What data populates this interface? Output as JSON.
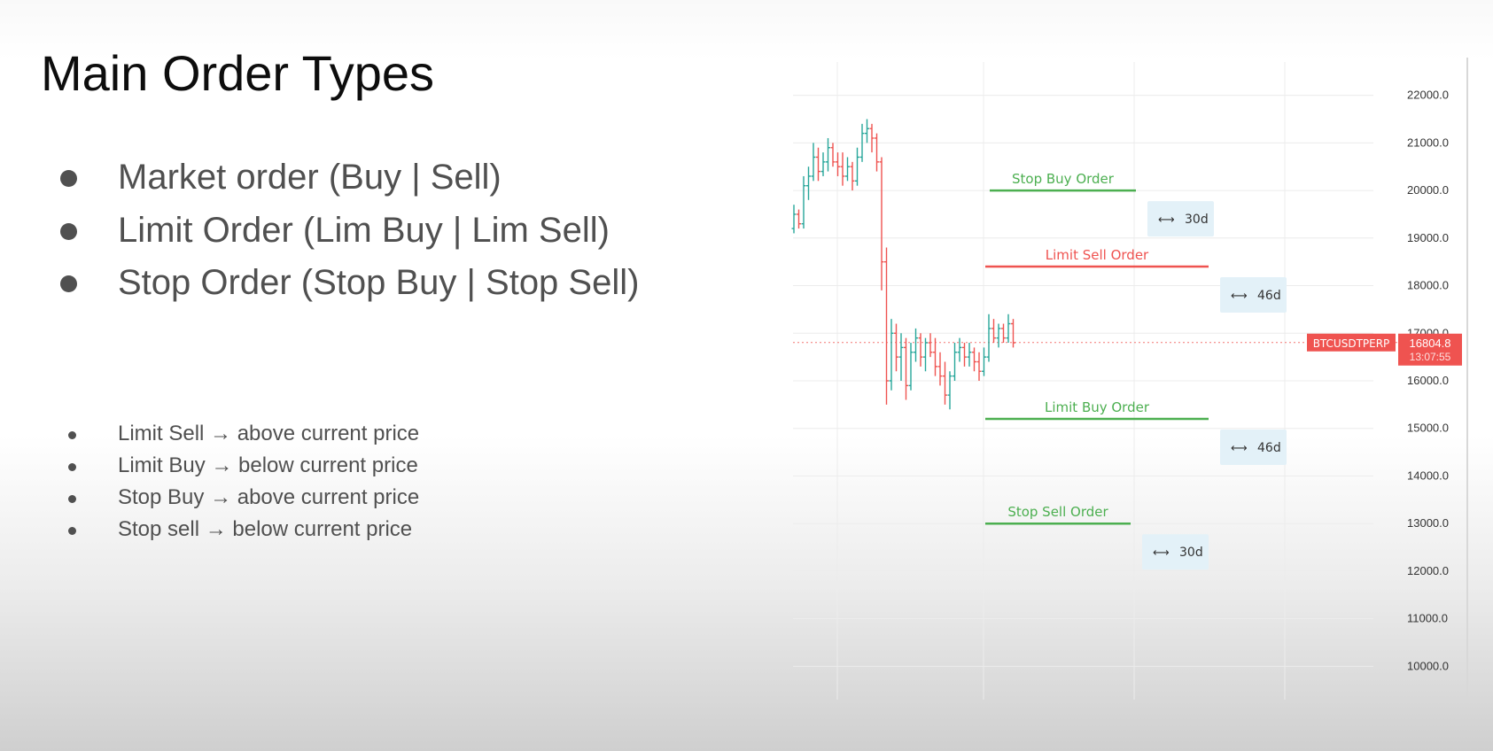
{
  "slide": {
    "title": "Main Order Types",
    "bullets": [
      "Market order (Buy | Sell)",
      "Limit Order (Lim Buy | Lim Sell)",
      "Stop Order (Stop Buy | Stop Sell)"
    ],
    "sub_bullets": [
      "Limit Sell → above current price",
      "Limit Buy → below current price",
      "Stop Buy → above current price",
      "Stop sell → below current price"
    ]
  },
  "chart_data": {
    "type": "candlestick",
    "symbol": "BTCUSDTPERP",
    "current_price": 16804.8,
    "countdown": "13:07:55",
    "yticks": [
      "22000.0",
      "21000.0",
      "20000.0",
      "19000.0",
      "18000.0",
      "17000.0",
      "16000.0",
      "15000.0",
      "14000.0",
      "13000.0",
      "12000.0",
      "11000.0",
      "10000.0"
    ],
    "ylim": [
      9300,
      22700
    ],
    "grid": true,
    "colors": {
      "up": "#26a69a",
      "down": "#ef5350",
      "buy_line": "#4caf50",
      "sell_line": "#ef5350",
      "label_bg": "#e3f1f8"
    },
    "order_lines": [
      {
        "label": "Stop Buy Order",
        "price": 20000,
        "kind": "buy",
        "duration": "30d"
      },
      {
        "label": "Limit Sell Order",
        "price": 18400,
        "kind": "sell",
        "duration": "46d"
      },
      {
        "label": "Limit Buy Order",
        "price": 15200,
        "kind": "buy",
        "duration": "46d"
      },
      {
        "label": "Stop Sell Order",
        "price": 13000,
        "kind": "buy",
        "duration": "30d"
      }
    ],
    "candles": [
      [
        19200,
        19700,
        19100,
        19500
      ],
      [
        19500,
        19600,
        19200,
        19300
      ],
      [
        19300,
        20300,
        19200,
        20100
      ],
      [
        20100,
        20500,
        19800,
        20300
      ],
      [
        20300,
        21000,
        20200,
        20700
      ],
      [
        20700,
        20900,
        20200,
        20400
      ],
      [
        20400,
        20800,
        20300,
        20600
      ],
      [
        20600,
        21100,
        20400,
        20900
      ],
      [
        20900,
        21000,
        20500,
        20600
      ],
      [
        20600,
        20800,
        20300,
        20500
      ],
      [
        20500,
        20800,
        20100,
        20300
      ],
      [
        20300,
        20700,
        20200,
        20500
      ],
      [
        20500,
        20600,
        20000,
        20200
      ],
      [
        20200,
        20900,
        20100,
        20700
      ],
      [
        20700,
        21400,
        20600,
        21200
      ],
      [
        21200,
        21500,
        21000,
        21300
      ],
      [
        21300,
        21400,
        20800,
        21100
      ],
      [
        21100,
        21200,
        20400,
        20600
      ],
      [
        20600,
        20700,
        17900,
        18500
      ],
      [
        18500,
        18800,
        15500,
        16000
      ],
      [
        16000,
        17300,
        15800,
        17000
      ],
      [
        17000,
        17200,
        16200,
        16500
      ],
      [
        16500,
        17000,
        16000,
        16700
      ],
      [
        16700,
        16900,
        15600,
        15900
      ],
      [
        15900,
        16800,
        15800,
        16600
      ],
      [
        16600,
        17100,
        16400,
        16900
      ],
      [
        16900,
        17000,
        16300,
        16500
      ],
      [
        16500,
        16900,
        16200,
        16800
      ],
      [
        16800,
        17000,
        16500,
        16600
      ],
      [
        16600,
        16900,
        16100,
        16300
      ],
      [
        16300,
        16600,
        15900,
        16100
      ],
      [
        16100,
        16400,
        15500,
        15700
      ],
      [
        15700,
        16200,
        15400,
        16100
      ],
      [
        16100,
        16800,
        16000,
        16600
      ],
      [
        16600,
        16900,
        16400,
        16700
      ],
      [
        16700,
        16800,
        16300,
        16500
      ],
      [
        16500,
        16800,
        16300,
        16600
      ],
      [
        16600,
        16700,
        16200,
        16400
      ],
      [
        16400,
        16600,
        16000,
        16200
      ],
      [
        16200,
        16700,
        16100,
        16500
      ],
      [
        16500,
        17400,
        16400,
        17100
      ],
      [
        17100,
        17300,
        16800,
        16900
      ],
      [
        16900,
        17200,
        16700,
        17100
      ],
      [
        17100,
        17200,
        16800,
        16900
      ],
      [
        16900,
        17400,
        16800,
        17200
      ],
      [
        17200,
        17300,
        16700,
        16800
      ]
    ]
  }
}
